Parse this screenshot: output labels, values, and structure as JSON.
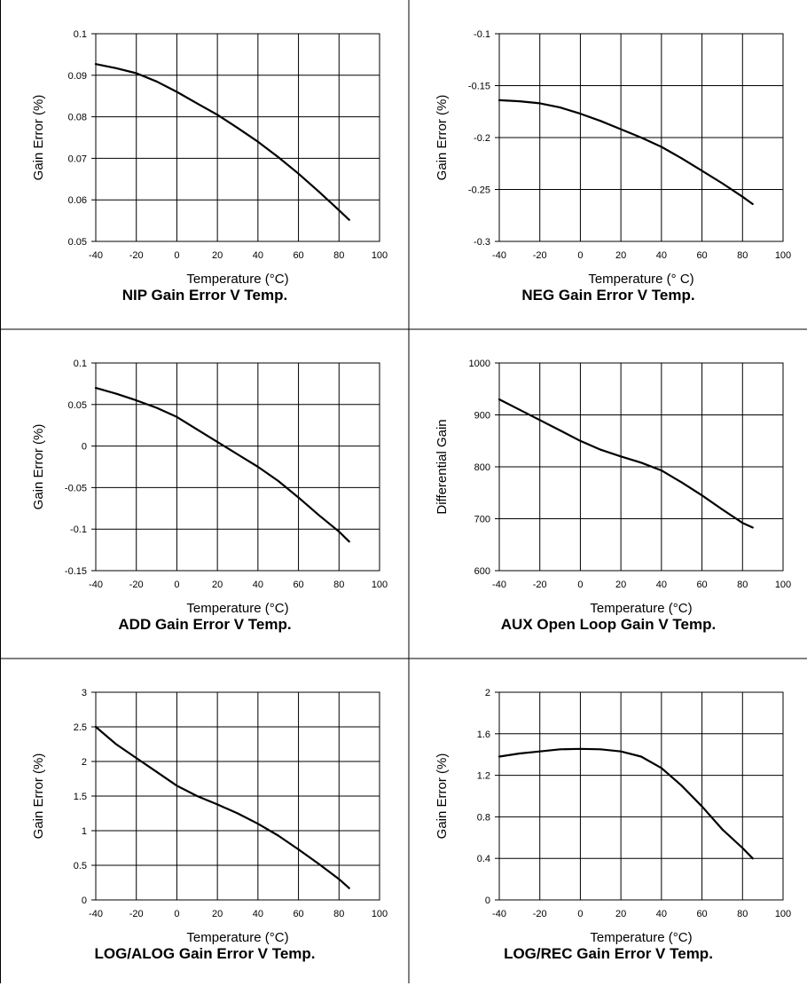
{
  "chart_data": [
    {
      "type": "line",
      "title": "NIP Gain Error V Temp.",
      "xlabel": "Temperature (°C)",
      "ylabel": "Gain Error (%)",
      "xlim": [
        -40,
        100
      ],
      "ylim": [
        0.05,
        0.1
      ],
      "xticks": [
        -40,
        -20,
        0,
        20,
        40,
        60,
        80,
        100
      ],
      "yticks": [
        "0.05",
        "0.06",
        "0.07",
        "0.08",
        "0.09",
        "0.1"
      ],
      "grid": true,
      "x": [
        -40,
        -30,
        -20,
        -10,
        0,
        10,
        20,
        30,
        40,
        50,
        60,
        70,
        80,
        85
      ],
      "y": [
        0.0927,
        0.0917,
        0.0905,
        0.0885,
        0.086,
        0.0832,
        0.0805,
        0.0773,
        0.074,
        0.0703,
        0.0663,
        0.062,
        0.0575,
        0.0552
      ]
    },
    {
      "type": "line",
      "title": "NEG Gain Error V Temp.",
      "xlabel": "Temperature (° C)",
      "ylabel": "Gain Error (%)",
      "xlim": [
        -40,
        100
      ],
      "ylim": [
        -0.3,
        -0.1
      ],
      "xticks": [
        -40,
        -20,
        0,
        20,
        40,
        60,
        80,
        100
      ],
      "yticks": [
        "-0.3",
        "-0.25",
        "-0.2",
        "-0.15",
        "-0.1"
      ],
      "grid": true,
      "x": [
        -40,
        -30,
        -20,
        -10,
        0,
        10,
        20,
        30,
        40,
        50,
        60,
        70,
        80,
        85
      ],
      "y": [
        -0.164,
        -0.165,
        -0.167,
        -0.171,
        -0.177,
        -0.184,
        -0.192,
        -0.2,
        -0.209,
        -0.22,
        -0.232,
        -0.244,
        -0.257,
        -0.264
      ]
    },
    {
      "type": "line",
      "title": "ADD Gain Error V Temp.",
      "xlabel": "Temperature (°C)",
      "ylabel": "Gain Error (%)",
      "xlim": [
        -40,
        100
      ],
      "ylim": [
        -0.15,
        0.1
      ],
      "xticks": [
        -40,
        -20,
        0,
        20,
        40,
        60,
        80,
        100
      ],
      "yticks": [
        "-0.15",
        "-0.1",
        "-0.05",
        "0",
        "0.05",
        "0.1"
      ],
      "grid": true,
      "x": [
        -40,
        -30,
        -20,
        -10,
        0,
        10,
        20,
        30,
        40,
        50,
        60,
        70,
        80,
        85
      ],
      "y": [
        0.07,
        0.063,
        0.055,
        0.046,
        0.035,
        0.02,
        0.005,
        -0.01,
        -0.025,
        -0.042,
        -0.062,
        -0.083,
        -0.103,
        -0.115
      ]
    },
    {
      "type": "line",
      "title": "AUX Open Loop Gain V Temp.",
      "xlabel": "Temperature (°C)",
      "ylabel": "Differential Gain",
      "xlim": [
        -40,
        100
      ],
      "ylim": [
        600,
        1000
      ],
      "xticks": [
        -40,
        -20,
        0,
        20,
        40,
        60,
        80,
        100
      ],
      "yticks": [
        "600",
        "700",
        "800",
        "900",
        "1000"
      ],
      "grid": true,
      "x": [
        -40,
        -30,
        -20,
        -10,
        0,
        10,
        20,
        30,
        40,
        50,
        60,
        70,
        80,
        85
      ],
      "y": [
        930,
        910,
        890,
        870,
        850,
        833,
        820,
        808,
        793,
        770,
        745,
        718,
        692,
        683
      ]
    },
    {
      "type": "line",
      "title": "LOG/ALOG Gain Error V Temp.",
      "xlabel": "Temperature (°C)",
      "ylabel": "Gain Error (%)",
      "xlim": [
        -40,
        100
      ],
      "ylim": [
        0,
        3
      ],
      "xticks": [
        -40,
        -20,
        0,
        20,
        40,
        60,
        80,
        100
      ],
      "yticks": [
        "0",
        "0.5",
        "1",
        "1.5",
        "2",
        "2.5",
        "3"
      ],
      "grid": true,
      "x": [
        -40,
        -30,
        -20,
        -10,
        0,
        10,
        20,
        30,
        40,
        50,
        60,
        70,
        80,
        85
      ],
      "y": [
        2.5,
        2.25,
        2.05,
        1.85,
        1.65,
        1.5,
        1.38,
        1.25,
        1.1,
        0.93,
        0.73,
        0.52,
        0.3,
        0.17
      ]
    },
    {
      "type": "line",
      "title": "LOG/REC Gain Error V Temp.",
      "xlabel": "Temperature (°C)",
      "ylabel": "Gain Error (%)",
      "xlim": [
        -40,
        100
      ],
      "ylim": [
        0,
        2
      ],
      "xticks": [
        -40,
        -20,
        0,
        20,
        40,
        60,
        80,
        100
      ],
      "yticks": [
        "0",
        "0.4",
        "0.8",
        "1.2",
        "1.6",
        "2"
      ],
      "grid": true,
      "x": [
        -40,
        -30,
        -20,
        -10,
        0,
        10,
        20,
        30,
        40,
        50,
        60,
        70,
        80,
        85
      ],
      "y": [
        1.38,
        1.41,
        1.43,
        1.45,
        1.455,
        1.45,
        1.43,
        1.38,
        1.27,
        1.1,
        0.9,
        0.68,
        0.5,
        0.4
      ]
    }
  ]
}
